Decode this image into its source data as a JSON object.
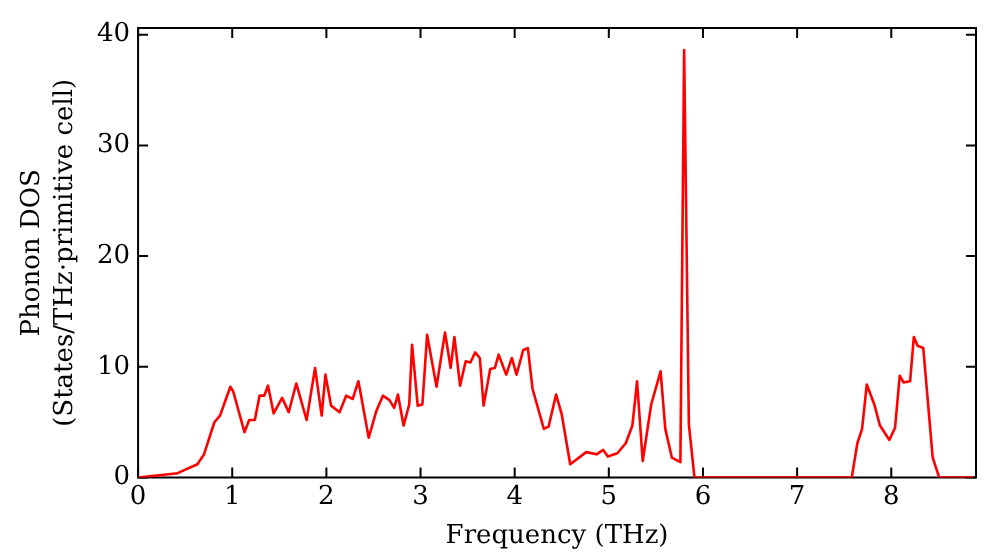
{
  "chart_data": {
    "type": "line",
    "xlabel": "Frequency (THz)",
    "ylabel": "Phonon DOS\n(States/THz·primitive cell)",
    "x": [
      0,
      0.42,
      0.63,
      0.7,
      0.81,
      0.87,
      0.98,
      1.01,
      1.13,
      1.18,
      1.24,
      1.29,
      1.34,
      1.38,
      1.44,
      1.53,
      1.6,
      1.68,
      1.79,
      1.88,
      1.95,
      1.99,
      2.05,
      2.14,
      2.21,
      2.28,
      2.34,
      2.45,
      2.53,
      2.6,
      2.67,
      2.72,
      2.76,
      2.82,
      2.88,
      2.91,
      2.97,
      3.02,
      3.07,
      3.17,
      3.26,
      3.32,
      3.36,
      3.42,
      3.48,
      3.53,
      3.58,
      3.63,
      3.67,
      3.74,
      3.79,
      3.83,
      3.91,
      3.97,
      4.02,
      4.09,
      4.14,
      4.19,
      4.31,
      4.36,
      4.44,
      4.5,
      4.59,
      4.76,
      4.87,
      4.94,
      4.99,
      5.09,
      5.18,
      5.25,
      5.3,
      5.36,
      5.45,
      5.55,
      5.6,
      5.67,
      5.76,
      5.8,
      5.85,
      5.91,
      7.58,
      7.64,
      7.69,
      7.74,
      7.82,
      7.88,
      7.98,
      8.04,
      8.09,
      8.13,
      8.2,
      8.24,
      8.28,
      8.34,
      8.44,
      8.51,
      8.87
    ],
    "series": [
      {
        "color": "#ff0000",
        "values": [
          0,
          0.4,
          1.2,
          2.1,
          5.0,
          5.6,
          8.2,
          7.8,
          4.1,
          5.2,
          5.2,
          7.4,
          7.4,
          8.3,
          5.8,
          7.2,
          5.9,
          8.5,
          5.2,
          9.9,
          5.6,
          9.3,
          6.5,
          5.9,
          7.4,
          7.1,
          8.7,
          3.6,
          6.0,
          7.4,
          7.0,
          6.3,
          7.5,
          4.7,
          6.6,
          12.0,
          6.5,
          6.6,
          12.9,
          8.2,
          13.1,
          9.9,
          12.7,
          8.3,
          10.5,
          10.4,
          11.3,
          10.8,
          6.5,
          9.8,
          9.9,
          11.1,
          9.3,
          10.8,
          9.3,
          11.5,
          11.7,
          8.0,
          4.4,
          4.6,
          7.5,
          5.7,
          1.2,
          2.3,
          2.1,
          2.5,
          1.9,
          2.2,
          3.1,
          4.7,
          8.7,
          1.5,
          6.6,
          9.6,
          4.4,
          1.8,
          1.4,
          38.6,
          4.8,
          0,
          0,
          3.1,
          4.4,
          8.4,
          6.6,
          4.7,
          3.4,
          4.5,
          9.2,
          8.6,
          8.7,
          12.7,
          11.9,
          11.7,
          1.8,
          0,
          0
        ]
      }
    ],
    "xlim": [
      0,
      8.9
    ],
    "xticks": [
      0,
      1,
      2,
      3,
      4,
      5,
      6,
      7,
      8
    ],
    "ylim": [
      0,
      40.6
    ],
    "yticks": [
      0,
      10,
      20,
      30,
      40
    ],
    "grid": false,
    "legend": false,
    "marker": "none",
    "line_style": "solid"
  }
}
